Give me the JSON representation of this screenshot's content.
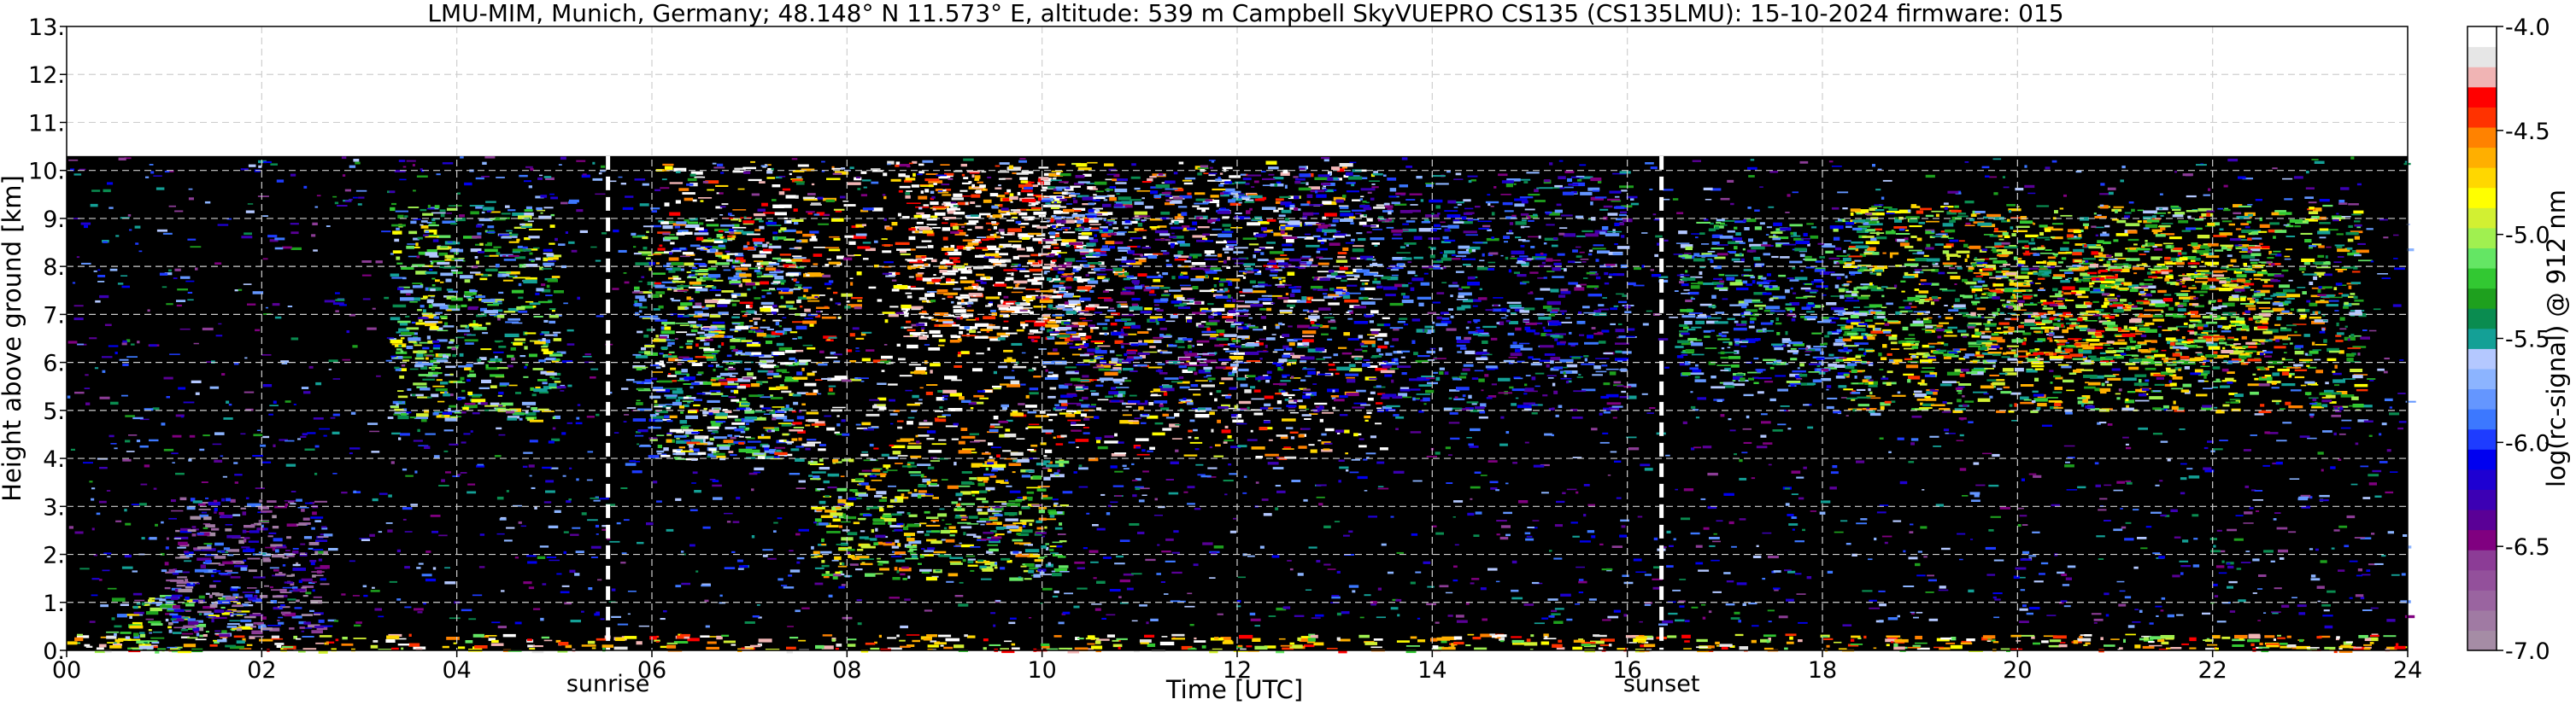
{
  "chart_data": {
    "type": "heatmap",
    "title": "LMU-MIM, Munich, Germany; 48.148° N 11.573° E, altitude: 539 m    Campbell SkyVUEPRO CS135 (CS135LMU): 15-10-2024    firmware: 015",
    "xlabel": "Time [UTC]",
    "ylabel": "Height above ground [km]",
    "xlim": [
      0,
      24
    ],
    "ylim": [
      0,
      13
    ],
    "x_ticks": [
      "00",
      "02",
      "04",
      "06",
      "08",
      "10",
      "12",
      "14",
      "16",
      "18",
      "20",
      "22",
      "24"
    ],
    "y_ticks": [
      "0.",
      "1.",
      "2.",
      "3.",
      "4.",
      "5.",
      "6.",
      "7.",
      "8.",
      "9.",
      "10.",
      "11.",
      "12.",
      "13."
    ],
    "grid": true,
    "signal_top_km": 10.3,
    "annotations": [
      {
        "label": "sunrise",
        "x": 5.55
      },
      {
        "label": "sunset",
        "x": 16.35
      }
    ],
    "colorbar": {
      "label": "log(rc-signal) @ 912 nm",
      "range": [
        -7.0,
        -4.0
      ],
      "ticks": [
        "-7.0",
        "-6.5",
        "-6.0",
        "-5.5",
        "-5.0",
        "-4.5",
        "-4.0"
      ],
      "colors": [
        "#a58ca5",
        "#a07aa3",
        "#9a64a0",
        "#93509b",
        "#8c3c96",
        "#800080",
        "#5a0096",
        "#3c00b4",
        "#1e00d2",
        "#0000f0",
        "#1e3cff",
        "#3c78ff",
        "#6496ff",
        "#8cb4ff",
        "#b4c8ff",
        "#14a096",
        "#0a8c50",
        "#1ea01e",
        "#32c832",
        "#64e664",
        "#a0f050",
        "#d2f032",
        "#ffff00",
        "#ffd700",
        "#ffaf00",
        "#ff8200",
        "#ff3200",
        "#ff0000",
        "#f0b4b4",
        "#e6e6e6",
        "#ffffff"
      ]
    },
    "signal_regions": [
      {
        "t": [
          0,
          24
        ],
        "h": [
          0.0,
          0.35
        ],
        "v": -4.6
      },
      {
        "t": [
          0.4,
          1.8
        ],
        "h": [
          0.0,
          1.2
        ],
        "v": -5.3
      },
      {
        "t": [
          1.0,
          2.6
        ],
        "h": [
          0.3,
          3.2
        ],
        "v": -6.4
      },
      {
        "t": [
          3.3,
          5.0
        ],
        "h": [
          4.8,
          9.3
        ],
        "v": -5.3
      },
      {
        "t": [
          5.8,
          7.5
        ],
        "h": [
          4.0,
          9.0
        ],
        "v": -5.5
      },
      {
        "t": [
          7.6,
          10.2
        ],
        "h": [
          1.5,
          4.0
        ],
        "v": -5.1
      },
      {
        "t": [
          8.5,
          10.5
        ],
        "h": [
          6.5,
          10.0
        ],
        "v": -4.1
      },
      {
        "t": [
          6.0,
          13.5
        ],
        "h": [
          4.0,
          10.2
        ],
        "v": -4.3
      },
      {
        "t": [
          10.0,
          16.0
        ],
        "h": [
          5.0,
          10.0
        ],
        "v": -5.9
      },
      {
        "t": [
          16.5,
          18.5
        ],
        "h": [
          5.5,
          9.0
        ],
        "v": -5.6
      },
      {
        "t": [
          18.2,
          23.5
        ],
        "h": [
          5.0,
          9.3
        ],
        "v": -5.0
      },
      {
        "t": [
          19.5,
          22.5
        ],
        "h": [
          6.0,
          8.5
        ],
        "v": -4.8
      }
    ]
  }
}
